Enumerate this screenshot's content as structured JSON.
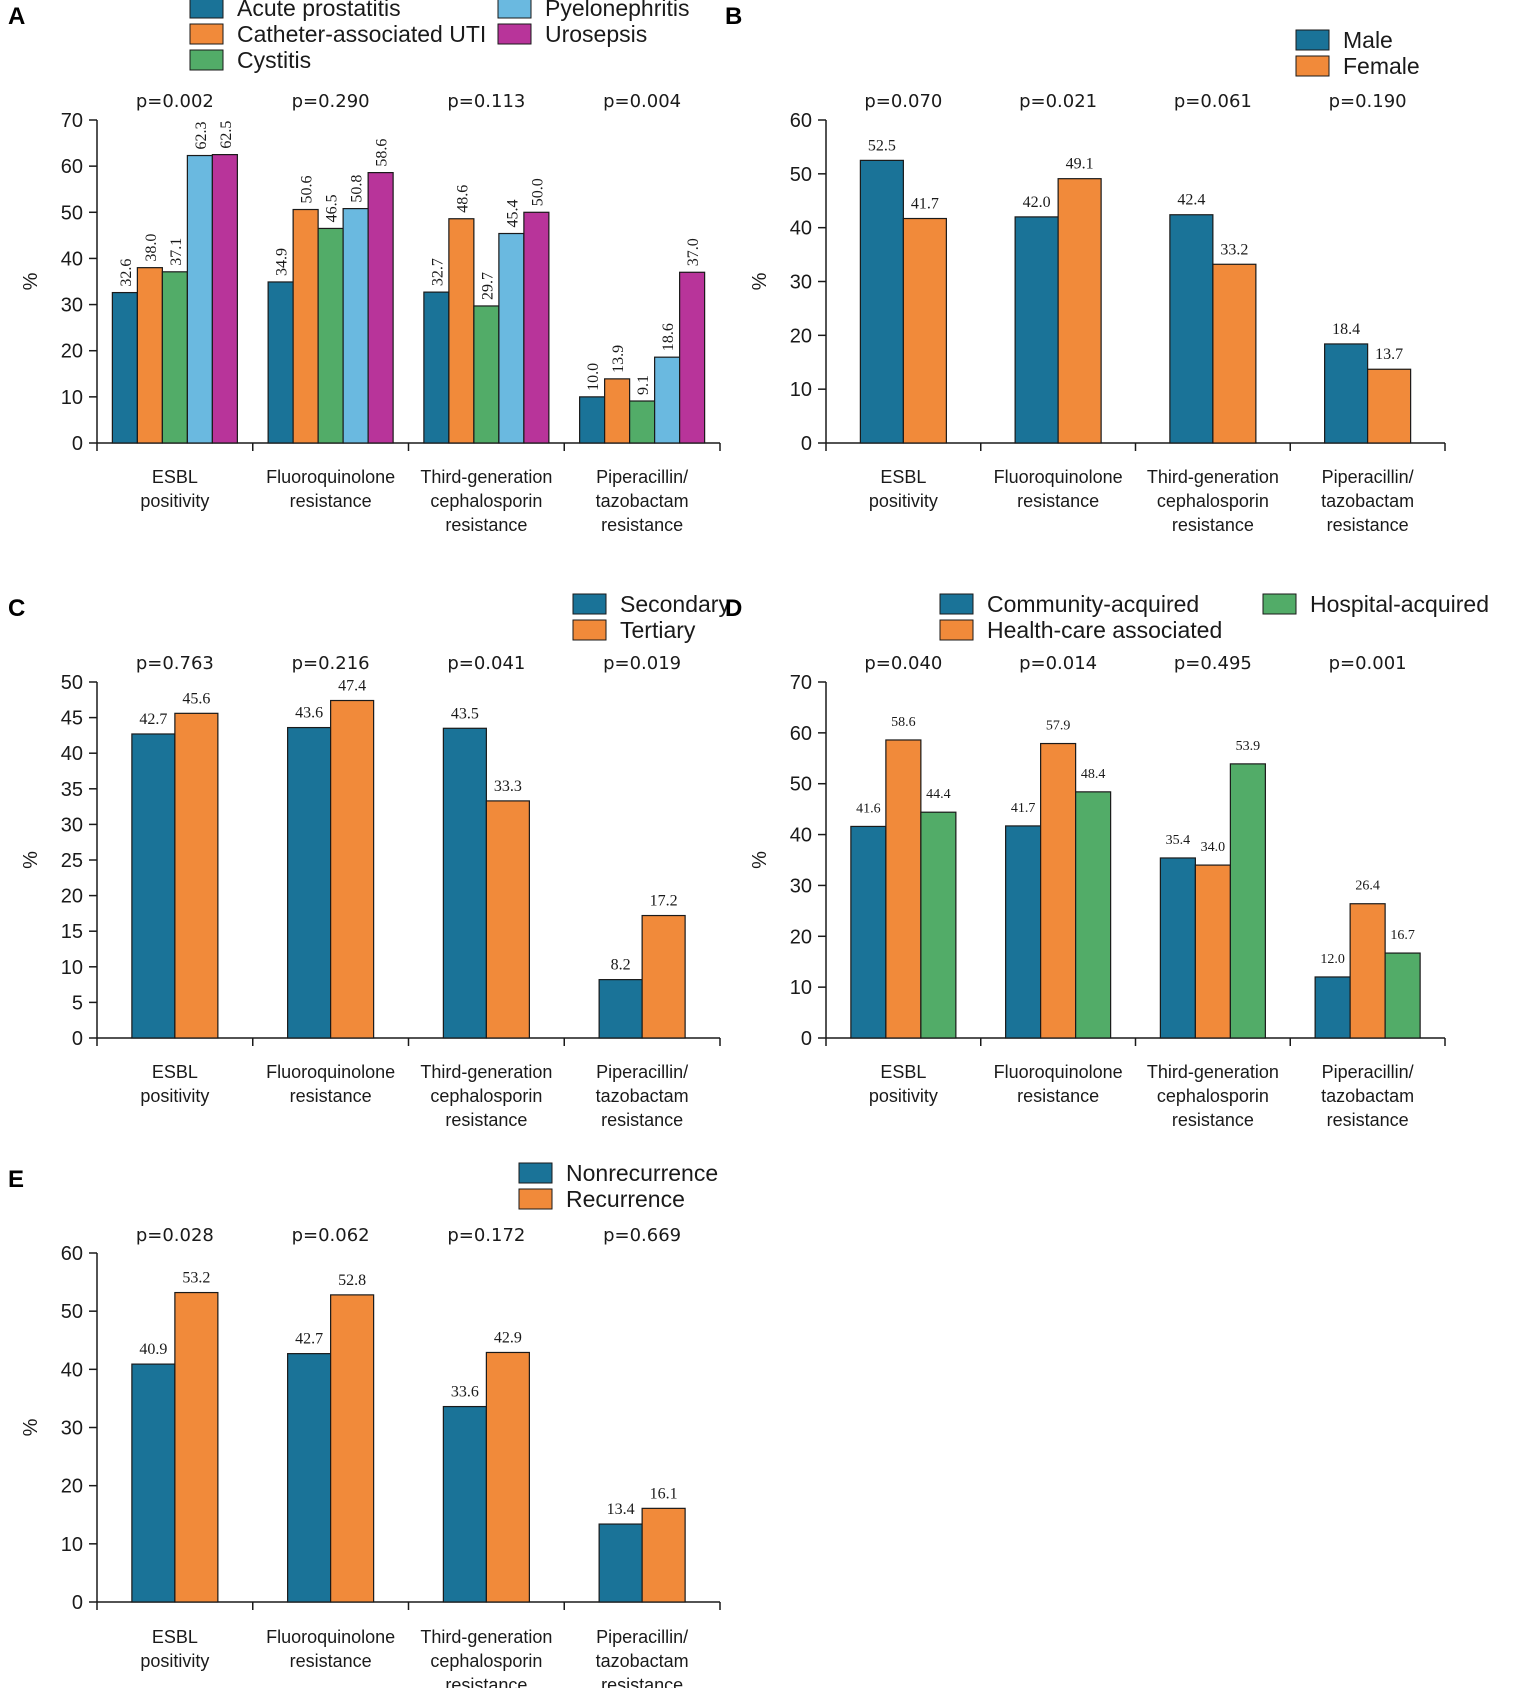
{
  "figure": {
    "colors": {
      "teal": "#1a7398",
      "orange": "#f18a3a",
      "green": "#52ac68",
      "lightblue": "#6ab9e0",
      "magenta": "#b8349a"
    }
  },
  "chart_data": [
    {
      "panel": "A",
      "type": "bar",
      "ylabel": "%",
      "ylim": [
        0,
        70
      ],
      "yticks": [
        0,
        10,
        20,
        30,
        40,
        50,
        60,
        70
      ],
      "categories": [
        [
          "ESBL",
          "positivity"
        ],
        [
          "Fluoroquinolone",
          "resistance"
        ],
        [
          "Third-generation",
          "cephalosporin",
          "resistance"
        ],
        [
          "Piperacillin/",
          "tazobactam",
          "resistance"
        ]
      ],
      "p_values": [
        "p=0.002",
        "p=0.290",
        "p=0.113",
        "p=0.004"
      ],
      "label_style": "rotated",
      "series": [
        {
          "name": "Acute prostatitis",
          "color": "#1a7398",
          "values": [
            32.6,
            34.9,
            32.7,
            10.0
          ],
          "labels": [
            "32.6",
            "34.9",
            "32.7",
            "10.0"
          ]
        },
        {
          "name": "Catheter-associated UTI",
          "color": "#f18a3a",
          "values": [
            38.0,
            50.6,
            48.6,
            13.9
          ],
          "labels": [
            "38.0",
            "50.6",
            "48.6",
            "13.9"
          ]
        },
        {
          "name": "Cystitis",
          "color": "#52ac68",
          "values": [
            37.1,
            46.5,
            29.7,
            9.1
          ],
          "labels": [
            "37.1",
            "46.5",
            "29.7",
            "9.1"
          ]
        },
        {
          "name": "Pyelonephritis",
          "color": "#6ab9e0",
          "values": [
            62.3,
            50.8,
            45.4,
            18.6
          ],
          "labels": [
            "62.3",
            "50.8",
            "45.4",
            "18.6"
          ]
        },
        {
          "name": "Urosepsis",
          "color": "#b8349a",
          "values": [
            62.5,
            58.6,
            50.0,
            37.0
          ],
          "labels": [
            "62.5",
            "58.6",
            "50.0",
            "37.0"
          ]
        }
      ]
    },
    {
      "panel": "B",
      "type": "bar",
      "ylabel": "%",
      "ylim": [
        0,
        60
      ],
      "yticks": [
        0,
        10,
        20,
        30,
        40,
        50,
        60
      ],
      "categories": [
        [
          "ESBL",
          "positivity"
        ],
        [
          "Fluoroquinolone",
          "resistance"
        ],
        [
          "Third-generation",
          "cephalosporin",
          "resistance"
        ],
        [
          "Piperacillin/",
          "tazobactam",
          "resistance"
        ]
      ],
      "p_values": [
        "p=0.070",
        "p=0.021",
        "p=0.061",
        "p=0.190"
      ],
      "label_style": "normal",
      "series": [
        {
          "name": "Male",
          "color": "#1a7398",
          "values": [
            52.5,
            42.0,
            42.4,
            18.4
          ],
          "labels": [
            "52.5",
            "42.0",
            "42.4",
            "18.4"
          ]
        },
        {
          "name": "Female",
          "color": "#f18a3a",
          "values": [
            41.7,
            49.1,
            33.2,
            13.7
          ],
          "labels": [
            "41.7",
            "49.1",
            "33.2",
            "13.7"
          ]
        }
      ]
    },
    {
      "panel": "C",
      "type": "bar",
      "ylabel": "%",
      "ylim": [
        0,
        50
      ],
      "yticks": [
        0,
        5,
        10,
        15,
        20,
        25,
        30,
        35,
        40,
        45,
        50
      ],
      "categories": [
        [
          "ESBL",
          "positivity"
        ],
        [
          "Fluoroquinolone",
          "resistance"
        ],
        [
          "Third-generation",
          "cephalosporin",
          "resistance"
        ],
        [
          "Piperacillin/",
          "tazobactam",
          "resistance"
        ]
      ],
      "p_values": [
        "p=0.763",
        "p=0.216",
        "p=0.041",
        "p=0.019"
      ],
      "label_style": "normal",
      "series": [
        {
          "name": "Secondary",
          "color": "#1a7398",
          "values": [
            42.7,
            43.6,
            43.5,
            8.2
          ],
          "labels": [
            "42.7",
            "43.6",
            "43.5",
            "8.2"
          ]
        },
        {
          "name": "Tertiary",
          "color": "#f18a3a",
          "values": [
            45.6,
            47.4,
            33.3,
            17.2
          ],
          "labels": [
            "45.6",
            "47.4",
            "33.3",
            "17.2"
          ]
        }
      ]
    },
    {
      "panel": "D",
      "type": "bar",
      "ylabel": "%",
      "ylim": [
        0,
        70
      ],
      "yticks": [
        0,
        10,
        20,
        30,
        40,
        50,
        60,
        70
      ],
      "categories": [
        [
          "ESBL",
          "positivity"
        ],
        [
          "Fluoroquinolone",
          "resistance"
        ],
        [
          "Third-generation",
          "cephalosporin",
          "resistance"
        ],
        [
          "Piperacillin/",
          "tazobactam",
          "resistance"
        ]
      ],
      "p_values": [
        "p=0.040",
        "p=0.014",
        "p=0.495",
        "p=0.001"
      ],
      "label_style": "small",
      "series": [
        {
          "name": "Community-acquired",
          "color": "#1a7398",
          "values": [
            41.6,
            41.7,
            35.4,
            12.0
          ],
          "labels": [
            "41.6",
            "41.7",
            "35.4",
            "12.0"
          ]
        },
        {
          "name": "Health-care associated",
          "color": "#f18a3a",
          "values": [
            58.6,
            57.9,
            34.0,
            26.4
          ],
          "labels": [
            "58.6",
            "57.9",
            "34.0",
            "26.4"
          ]
        },
        {
          "name": "Hospital-acquired",
          "color": "#52ac68",
          "values": [
            44.4,
            48.4,
            53.9,
            16.7
          ],
          "labels": [
            "44.4",
            "48.4",
            "53.9",
            "16.7"
          ]
        }
      ]
    },
    {
      "panel": "E",
      "type": "bar",
      "ylabel": "%",
      "ylim": [
        0,
        60
      ],
      "yticks": [
        0,
        10,
        20,
        30,
        40,
        50,
        60
      ],
      "categories": [
        [
          "ESBL",
          "positivity"
        ],
        [
          "Fluoroquinolone",
          "resistance"
        ],
        [
          "Third-generation",
          "cephalosporin",
          "resistance"
        ],
        [
          "Piperacillin/",
          "tazobactam",
          "resistance"
        ]
      ],
      "p_values": [
        "p=0.028",
        "p=0.062",
        "p=0.172",
        "p=0.669"
      ],
      "label_style": "normal",
      "series": [
        {
          "name": "Nonrecurrence",
          "color": "#1a7398",
          "values": [
            40.9,
            42.7,
            33.6,
            13.4
          ],
          "labels": [
            "40.9",
            "42.7",
            "33.6",
            "13.4"
          ]
        },
        {
          "name": "Recurrence",
          "color": "#f18a3a",
          "values": [
            53.2,
            52.8,
            42.9,
            16.1
          ],
          "labels": [
            "53.2",
            "52.8",
            "42.9",
            "16.1"
          ]
        }
      ]
    }
  ]
}
